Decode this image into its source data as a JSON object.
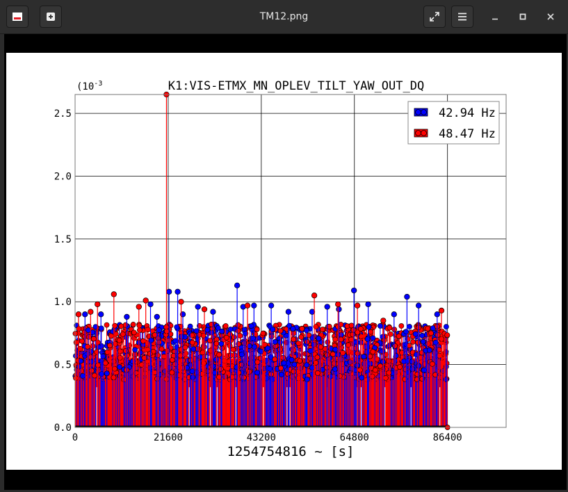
{
  "window": {
    "title": "TM12.png",
    "icons": {
      "app": "app-icon",
      "new": "new-tab-icon",
      "fullscreen": "fullscreen-icon",
      "menu": "hamburger-menu-icon",
      "minimize": "minimize-icon",
      "maximize": "maximize-icon",
      "close": "close-icon"
    }
  },
  "chart_data": {
    "type": "scatter",
    "style": "stem",
    "title": "K1:VIS-ETMX_MN_OPLEV_TILT_YAW_OUT_DQ",
    "xlabel": "1254754816 ~ [s]",
    "ylabel": "",
    "y_exponent_label": "(10",
    "y_exponent_power": "-3",
    "xlim": [
      0,
      100000
    ],
    "ylim": [
      0,
      2.65
    ],
    "x_ticks": [
      "0",
      "21600",
      "43200",
      "64800",
      "86400"
    ],
    "x_tick_values": [
      0,
      21600,
      43200,
      64800,
      86400
    ],
    "y_ticks": [
      "0.0",
      "0.5",
      "1.0",
      "1.5",
      "2.0",
      "2.5"
    ],
    "y_tick_values": [
      0,
      0.5,
      1.0,
      1.5,
      2.0,
      2.5
    ],
    "grid": true,
    "legend_position": "top-right",
    "series": [
      {
        "name": "42.94 Hz",
        "color": "#0000ff",
        "peaks": [
          [
            2300,
            0.9
          ],
          [
            6000,
            0.9
          ],
          [
            12000,
            0.88
          ],
          [
            17500,
            0.98
          ],
          [
            19000,
            0.88
          ],
          [
            21800,
            1.08
          ],
          [
            23800,
            1.08
          ],
          [
            25000,
            0.9
          ],
          [
            28500,
            0.96
          ],
          [
            32000,
            0.92
          ],
          [
            37600,
            1.13
          ],
          [
            39000,
            0.96
          ],
          [
            41500,
            0.97
          ],
          [
            45500,
            0.97
          ],
          [
            49500,
            0.92
          ],
          [
            55000,
            0.92
          ],
          [
            58500,
            0.96
          ],
          [
            61200,
            0.94
          ],
          [
            64700,
            1.09
          ],
          [
            68000,
            0.98
          ],
          [
            74000,
            0.9
          ],
          [
            77000,
            1.04
          ],
          [
            79700,
            0.97
          ],
          [
            84000,
            0.9
          ]
        ]
      },
      {
        "name": "48.47 Hz",
        "color": "#ff0000",
        "peaks": [
          [
            800,
            0.9
          ],
          [
            3600,
            0.92
          ],
          [
            5200,
            0.98
          ],
          [
            9000,
            1.06
          ],
          [
            14800,
            0.96
          ],
          [
            16400,
            1.01
          ],
          [
            21200,
            2.65
          ],
          [
            24600,
            1.0
          ],
          [
            30000,
            0.94
          ],
          [
            40000,
            0.97
          ],
          [
            55500,
            1.05
          ],
          [
            61000,
            0.98
          ],
          [
            65500,
            0.97
          ],
          [
            71500,
            0.85
          ],
          [
            85000,
            0.93
          ]
        ]
      }
    ],
    "density": {
      "x_start": 0,
      "x_end": 86400,
      "stem_count": 1500,
      "baseline_y": 0.6,
      "spread_y": 0.22,
      "dense_top_y": 0.55
    }
  }
}
